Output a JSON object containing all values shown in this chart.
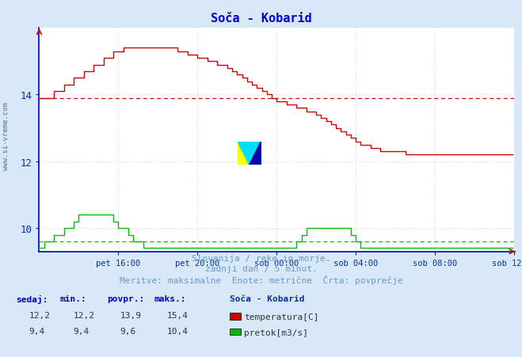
{
  "title": "Soča - Kobarid",
  "bg_color": "#d8e8f8",
  "plot_bg_color": "#ffffff",
  "xlabel_ticks": [
    "pet 16:00",
    "pet 20:00",
    "sob 00:00",
    "sob 04:00",
    "sob 08:00",
    "sob 12:00"
  ],
  "x_tick_positions": [
    48,
    96,
    144,
    192,
    240,
    288
  ],
  "x_total": 288,
  "temp_color": "#cc0000",
  "flow_color": "#00bb00",
  "temp_avg": 13.9,
  "flow_avg": 9.6,
  "temp_min": 12.2,
  "temp_max": 15.4,
  "flow_min": 9.4,
  "flow_max": 10.4,
  "temp_current": 12.2,
  "flow_current": 9.4,
  "ylim_bottom": 9.3,
  "ylim_top": 16.0,
  "yticks": [
    10,
    12,
    14
  ],
  "hgrid_color": "#ffcccc",
  "vgrid_color": "#ffcccc",
  "avg_line_color_temp": "#cc0000",
  "avg_line_color_flow": "#00bb00",
  "subtitle1": "Slovenija / reke in morje.",
  "subtitle2": "zadnji dan / 5 minut.",
  "subtitle3": "Meritve: maksimalne  Enote: metrične  Črta: povprečje",
  "legend_title": "Soča - Kobarid",
  "label_temp": "temperatura[C]",
  "label_flow": "pretok[m3/s]",
  "text_color": "#003399",
  "footer_color": "#6699cc",
  "stats_label_color": "#0000cc",
  "stats_val_color": "#333333",
  "watermark": "www.si-vreme.com",
  "watermark_color": "#1a3a6a",
  "temp_data": [
    13.9,
    13.9,
    13.9,
    14.1,
    14.1,
    14.3,
    14.3,
    14.5,
    14.5,
    14.7,
    14.7,
    14.9,
    14.9,
    15.1,
    15.1,
    15.3,
    15.3,
    15.4,
    15.4,
    15.4,
    15.4,
    15.4,
    15.4,
    15.4,
    15.4,
    15.4,
    15.4,
    15.4,
    15.3,
    15.3,
    15.2,
    15.2,
    15.1,
    15.1,
    15.0,
    15.0,
    14.9,
    14.9,
    14.8,
    14.7,
    14.6,
    14.5,
    14.4,
    14.3,
    14.2,
    14.1,
    14.0,
    13.9,
    13.8,
    13.8,
    13.7,
    13.7,
    13.6,
    13.6,
    13.5,
    13.5,
    13.4,
    13.3,
    13.2,
    13.1,
    13.0,
    12.9,
    12.8,
    12.7,
    12.6,
    12.5,
    12.5,
    12.4,
    12.4,
    12.3,
    12.3,
    12.3,
    12.3,
    12.3,
    12.2,
    12.2,
    12.2,
    12.2,
    12.2,
    12.2,
    12.2,
    12.2,
    12.2,
    12.2,
    12.2,
    12.2,
    12.2,
    12.2,
    12.2,
    12.2,
    12.2,
    12.2
  ],
  "flow_data": [
    9.4,
    9.6,
    9.6,
    9.8,
    9.8,
    10.0,
    10.0,
    10.2,
    10.4,
    10.4,
    10.4,
    10.4,
    10.4,
    10.4,
    10.4,
    10.2,
    10.0,
    10.0,
    9.8,
    9.6,
    9.6,
    9.4,
    9.4,
    9.4,
    9.4,
    9.4,
    9.4,
    9.4,
    9.4,
    9.4,
    9.4,
    9.4,
    9.4,
    9.4,
    9.4,
    9.4,
    9.4,
    9.4,
    9.4,
    9.4,
    9.4,
    9.4,
    9.4,
    9.4,
    9.4,
    9.4,
    9.4,
    9.4,
    9.4,
    9.4,
    9.4,
    9.4,
    9.6,
    9.8,
    10.0,
    10.0,
    10.0,
    10.0,
    10.0,
    10.0,
    10.0,
    10.0,
    10.0,
    9.8,
    9.6,
    9.4,
    9.4,
    9.4,
    9.4,
    9.4,
    9.4,
    9.4,
    9.4,
    9.4,
    9.4,
    9.4,
    9.4,
    9.4,
    9.4,
    9.4,
    9.4,
    9.4,
    9.4,
    9.4,
    9.4,
    9.4,
    9.4,
    9.4,
    9.4,
    9.4,
    9.4,
    9.4
  ]
}
